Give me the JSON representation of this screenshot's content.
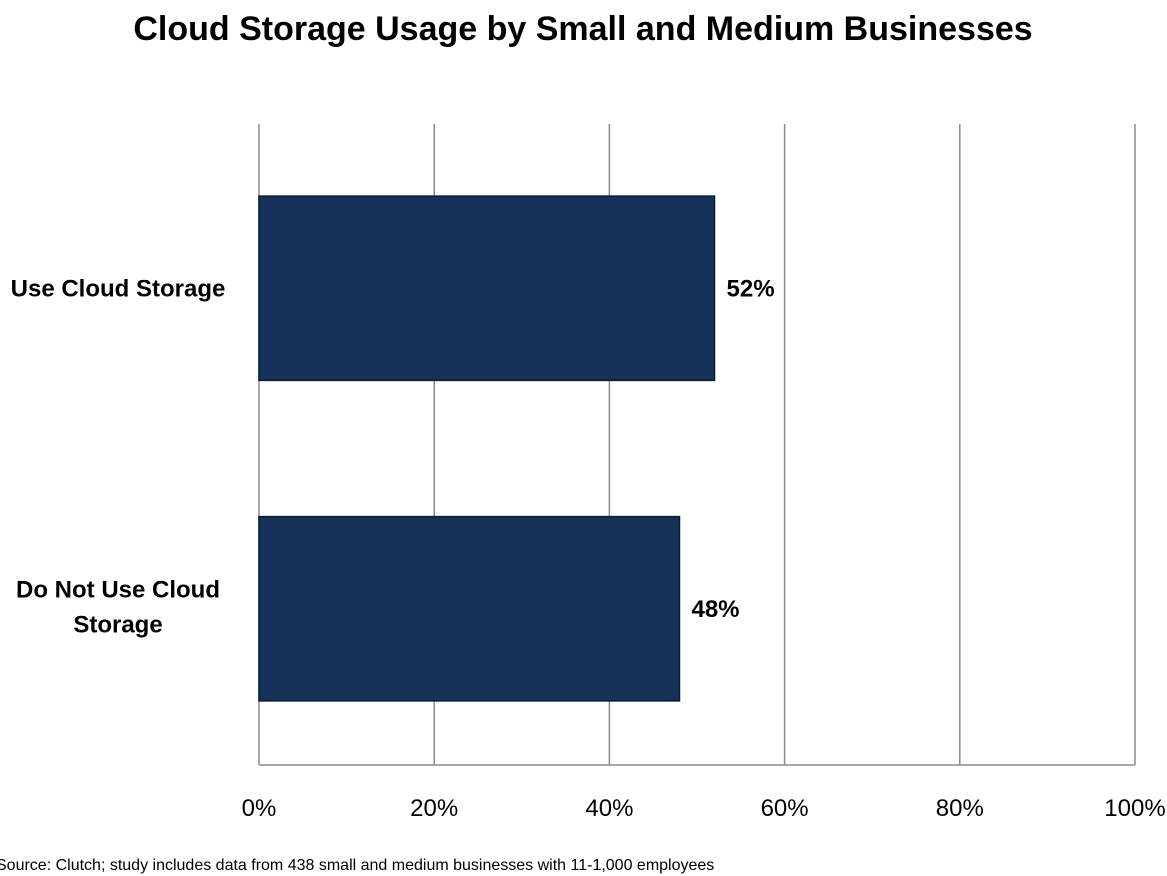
{
  "chart_data": {
    "type": "bar",
    "orientation": "horizontal",
    "title": "Cloud Storage Usage by Small and Medium Businesses",
    "categories": [
      [
        "Use Cloud Storage"
      ],
      [
        "Do Not Use Cloud",
        "Storage"
      ]
    ],
    "values": [
      52,
      48
    ],
    "data_labels": [
      "52%",
      "48%"
    ],
    "xlim": [
      0,
      100
    ],
    "x_ticks": [
      0,
      20,
      40,
      60,
      80,
      100
    ],
    "x_tick_labels": [
      "0%",
      "20%",
      "40%",
      "60%",
      "80%",
      "100%"
    ],
    "grid": "vertical",
    "legend": "none",
    "bar_color": "#16325a",
    "grid_color": "#8c8c8c",
    "source": "Source: Clutch; study includes data from 438 small and medium businesses with 11-1,000 employees"
  }
}
